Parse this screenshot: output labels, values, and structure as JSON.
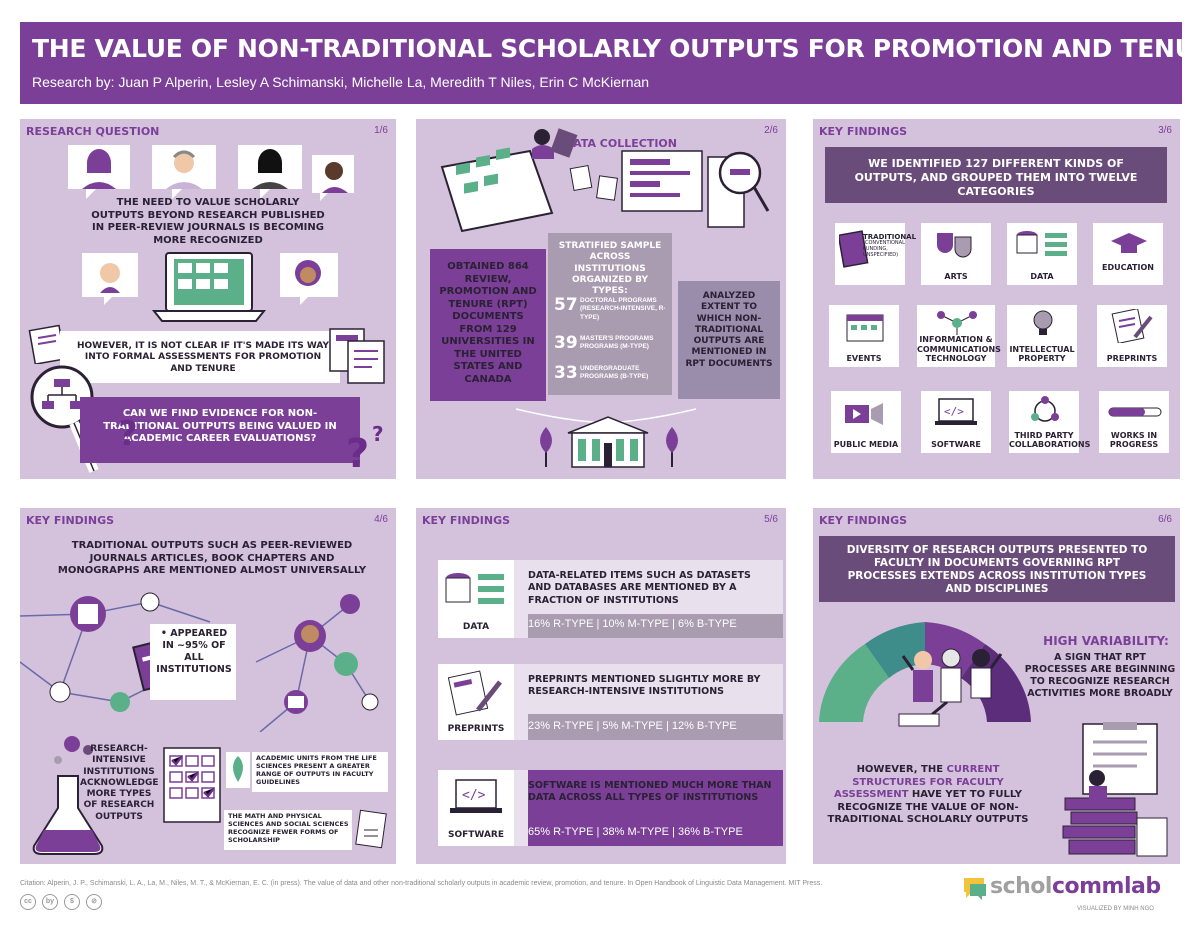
{
  "header": {
    "title": "THE VALUE OF NON-TRADITIONAL SCHOLARLY OUTPUTS FOR PROMOTION AND TENURE",
    "authors": "Research by: Juan P Alperin, Lesley A Schimanski, Michelle La, Meredith T Niles, Erin C McKiernan"
  },
  "panel1": {
    "label": "RESEARCH QUESTION",
    "num": "1/6",
    "text1": "THE NEED to VALUE SCHOLARLY OUTPUTS BEYOND RESEARCH PUBLISHED in PEER-REVIEW JOURNALS is BECOMING MORE RECOGNIZED",
    "text2": "HOWEVER, IT is not CLEAR if IT'S MADE ITS WAY into FORMAL ASSESSMENTS for PROMOTION and TENURE",
    "question": "CAN WE FIND EVIDENCE for NON-TRADITIONAL OUTPUTS BEING VALUED in ACADEMIC CAREER EVALUATIONS?"
  },
  "panel2": {
    "label": "DATA COLLECTION",
    "num": "2/6",
    "obtained": "OBTAINED 864 REVIEW, PROMOTION and TENURE (RPT) DOCUMENTS from 129 UNIVERSITIES in the UNITED STATES and CANADA",
    "stratified": "STRATIFIED SAMPLE across INSTITUTIONS ORGANIZED by TYPES:",
    "types": [
      {
        "n": "57",
        "desc": "DOCTORAL PROGRAMS (RESEARCH-INTENSIVE, R-TYPE)"
      },
      {
        "n": "39",
        "desc": "MASTER'S PROGRAMS PROGRAMS (M-TYPE)"
      },
      {
        "n": "33",
        "desc": "UNDERGRADUATE PROGRAMS (B-TYPE)"
      }
    ],
    "analyzed": "ANALYZED EXTENT to WHICH NON-TRADITIONAL OUTPUTS are MENTIONED in RPT DOCUMENTS"
  },
  "panel3": {
    "label": "KEY FINDINGS",
    "num": "3/6",
    "ribbon": "WE IDENTIFIED 127 DIFFERENT KINDS of OUTPUTS, and GROUPED THEM into TWELVE CATEGORIES",
    "tiles": [
      {
        "label": "TRADITIONAL",
        "sub": "(CONVENTIONAL FUNDING, UNSPECIFIED)"
      },
      {
        "label": "ARTS",
        "sub": ""
      },
      {
        "label": "DATA",
        "sub": ""
      },
      {
        "label": "EDUCATION",
        "sub": ""
      },
      {
        "label": "EVENTS",
        "sub": ""
      },
      {
        "label": "INFORMATION & COMMUNICATIONS TECHNOLOGY",
        "sub": ""
      },
      {
        "label": "INTELLECTUAL PROPERTY",
        "sub": ""
      },
      {
        "label": "PREPRINTS",
        "sub": ""
      },
      {
        "label": "PUBLIC MEDIA",
        "sub": ""
      },
      {
        "label": "SOFTWARE",
        "sub": ""
      },
      {
        "label": "THIRD PARTY COLLABORATIONS",
        "sub": ""
      },
      {
        "label": "WORKS IN PROGRESS",
        "sub": ""
      }
    ]
  },
  "panel4": {
    "label": "KEY FINDINGS",
    "num": "4/6",
    "traditional": "TRADITIONAL OUTPUTS such as PEER-REVIEWED JOURNALS ARTICLES, BOOK CHAPTERS and MONOGRAPHS are MENTIONED ALMOST UNIVERSALLY",
    "appeared": "• APPEARED in ~95% of ALL INSTITUTIONS",
    "research": "RESEARCH-INTENSIVE INSTITUTIONS ACKNOWLEDGE MORE TYPES of RESEARCH OUTPUTS",
    "life": "ACADEMIC UNITS from the LIFE SCIENCES PRESENT a GREATER RANGE of OUTPUTS in FACULTY GUIDELINES",
    "math": "THE MATH and PHYSICAL SCIENCES and SOCIAL SCIENCES RECOGNIZE FEWER FORMS of SCHOLARSHIP"
  },
  "panel5": {
    "label": "KEY FINDINGS",
    "num": "5/6",
    "cards": [
      {
        "icon": "DATA",
        "text": "DATA-RELATED ITEMS SUCH as DATASETS and DATABASES are MENTIONED by a FRACTION of INSTITUTIONS",
        "stats": "16% R-TYPE  |  10% M-TYPE  |  6% B-TYPE"
      },
      {
        "icon": "PREPRINTS",
        "text": "PREPRINTS MENTIONED SLIGHTLY MORE by RESEARCH-INTENSIVE INSTITUTIONS",
        "stats": "23% R-TYPE  |  5% M-TYPE  |  12% B-TYPE"
      },
      {
        "icon": "SOFTWARE",
        "text": "SOFTWARE is MENTIONED MUCH MORE than DATA across ALL TYPES of INSTITUTIONS",
        "stats": "65% R-TYPE  |  38% M-TYPE  |  36% B-TYPE"
      }
    ]
  },
  "panel6": {
    "label": "KEY FINDINGS",
    "num": "6/6",
    "ribbon": "DIVERSITY of RESEARCH OUTPUTS PRESENTED to FACULTY in DOCUMENTS GOVERNING RPT PROCESSES EXTENDS across INSTITUTION TYPES and DISCIPLINES",
    "high_title": "HIGH VARIABILITY:",
    "high_text": "A SIGN that RPT PROCESSES are BEGINNING to RECOGNIZE RESEARCH ACTIVITIES MORE BROADLY",
    "however_pre": "HOWEVER, the ",
    "however_hl": "CURRENT STRUCTURES for FACULTY ASSESSMENT",
    "however_post": " HAVE YET to FULLY RECOGNIZE the VALUE of NON-TRADITIONAL SCHOLARLY OUTPUTS"
  },
  "footer": {
    "citation": "Citation: Alperin, J. P., Schimanski, L. A., La, M., Niles, M. T., & McKiernan, E. C. (in press). The value of data and other non-traditional scholarly outputs in academic review, promotion, and tenure. In Open Handbook of Linguistic Data Management. MIT Press.",
    "logo_a": "schol",
    "logo_b": "commlab",
    "credit": "VISUALIZED BY MINH NGO",
    "cc1": "cc",
    "cc2": "by",
    "cc3": "$",
    "cc4": "⊘"
  },
  "colors": {
    "brand": "#7b3f98",
    "panel": "#d4c2dd",
    "dark": "#6a4c7a"
  },
  "icons": [
    "avatar-icon",
    "laptop-icon",
    "magnifier-icon",
    "document-icon",
    "question-icon",
    "university-icon",
    "tree-icon",
    "book-icon",
    "masks-icon",
    "database-icon",
    "graduation-cap-icon",
    "calendar-icon",
    "network-icon",
    "lightbulb-icon",
    "pencil-icon",
    "video-icon",
    "code-icon",
    "cycle-icon",
    "progress-bar-icon",
    "flask-icon",
    "checklist-icon",
    "leaf-icon",
    "gauge-icon",
    "people-icon",
    "paper-stack-icon"
  ]
}
